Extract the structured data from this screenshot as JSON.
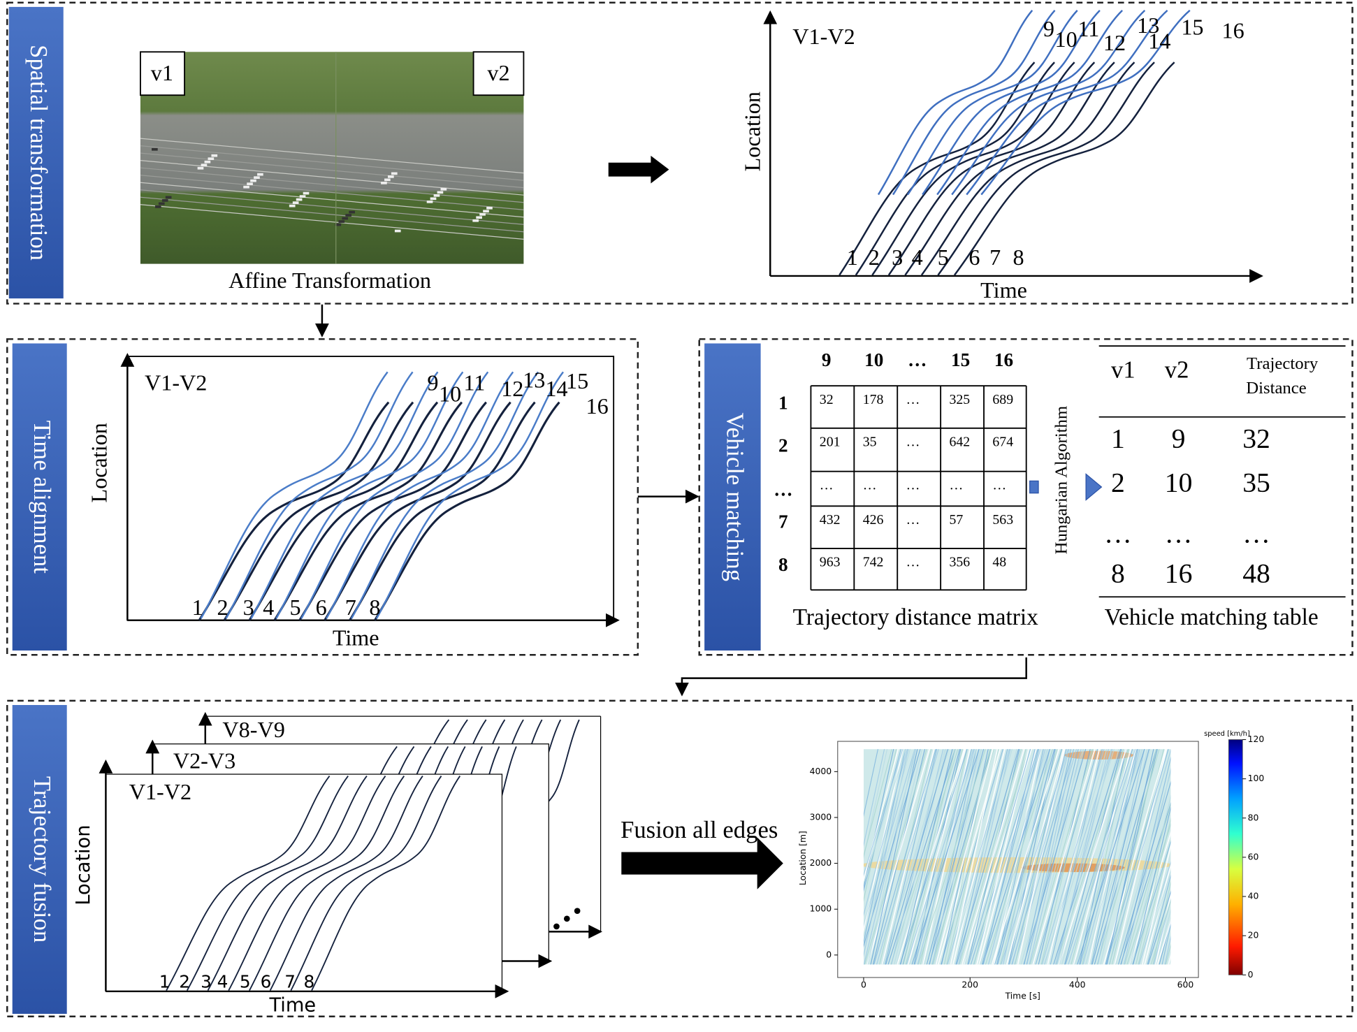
{
  "spatial": {
    "title": "Spatial transformation",
    "v1": "v1",
    "v2": "v2",
    "caption": "Affine Transformation",
    "plot": {
      "label": "V1-V2",
      "ylabel": "Location",
      "xlabel": "Time",
      "lower_ids": [
        "1",
        "2",
        "3",
        "4",
        "5",
        "6",
        "7",
        "8"
      ],
      "upper_ids": [
        "9",
        "10",
        "11",
        "12",
        "13",
        "14",
        "15",
        "16"
      ]
    }
  },
  "time_alignment": {
    "title": "Time alignment",
    "plot": {
      "label": "V1-V2",
      "ylabel": "Location",
      "xlabel": "Time",
      "lower_ids": [
        "1",
        "2",
        "3",
        "4",
        "5",
        "6",
        "7",
        "8"
      ],
      "upper_ids": [
        "9",
        "10",
        "11",
        "12",
        "13",
        "14",
        "15",
        "16"
      ]
    }
  },
  "vehicle_matching": {
    "title": "Vehicle matching",
    "matrix": {
      "col_headers": [
        "9",
        "10",
        "…",
        "15",
        "16"
      ],
      "row_headers": [
        "1",
        "2",
        "…",
        "7",
        "8"
      ],
      "rows": [
        [
          "32",
          "178",
          "…",
          "325",
          "689"
        ],
        [
          "201",
          "35",
          "…",
          "642",
          "674"
        ],
        [
          "…",
          "…",
          "…",
          "…",
          "…"
        ],
        [
          "432",
          "426",
          "…",
          "57",
          "563"
        ],
        [
          "963",
          "742",
          "…",
          "356",
          "48"
        ]
      ],
      "caption": "Trajectory distance matrix"
    },
    "algorithm": "Hungarian Algorithm",
    "table": {
      "headers": [
        "v1",
        "v2",
        [
          "Trajectory",
          "Distance"
        ]
      ],
      "rows": [
        [
          "1",
          "9",
          "32"
        ],
        [
          "2",
          "10",
          "35"
        ],
        [
          "…",
          "…",
          "…"
        ],
        [
          "8",
          "16",
          "48"
        ]
      ],
      "caption": "Vehicle matching table"
    }
  },
  "trajectory_fusion": {
    "title": "Trajectory fusion",
    "plots": [
      "V1-V2",
      "V2-V3",
      "V8-V9"
    ],
    "ylabel": "Location",
    "xlabel": "Time",
    "ids": [
      "1",
      "2",
      "3",
      "4",
      "5",
      "6",
      "7",
      "8"
    ],
    "arrow_label": "Fusion all edges",
    "heatmap": {
      "ylabel": "Location [m]",
      "xlabel": "Time [s]",
      "yticks": [
        "0",
        "1000",
        "2000",
        "3000",
        "4000"
      ],
      "xticks": [
        "0",
        "200",
        "400",
        "600"
      ],
      "colorbar_label": "speed [km/h]",
      "colorbar_ticks": [
        "0",
        "20",
        "40",
        "60",
        "80",
        "100",
        "120"
      ]
    }
  }
}
